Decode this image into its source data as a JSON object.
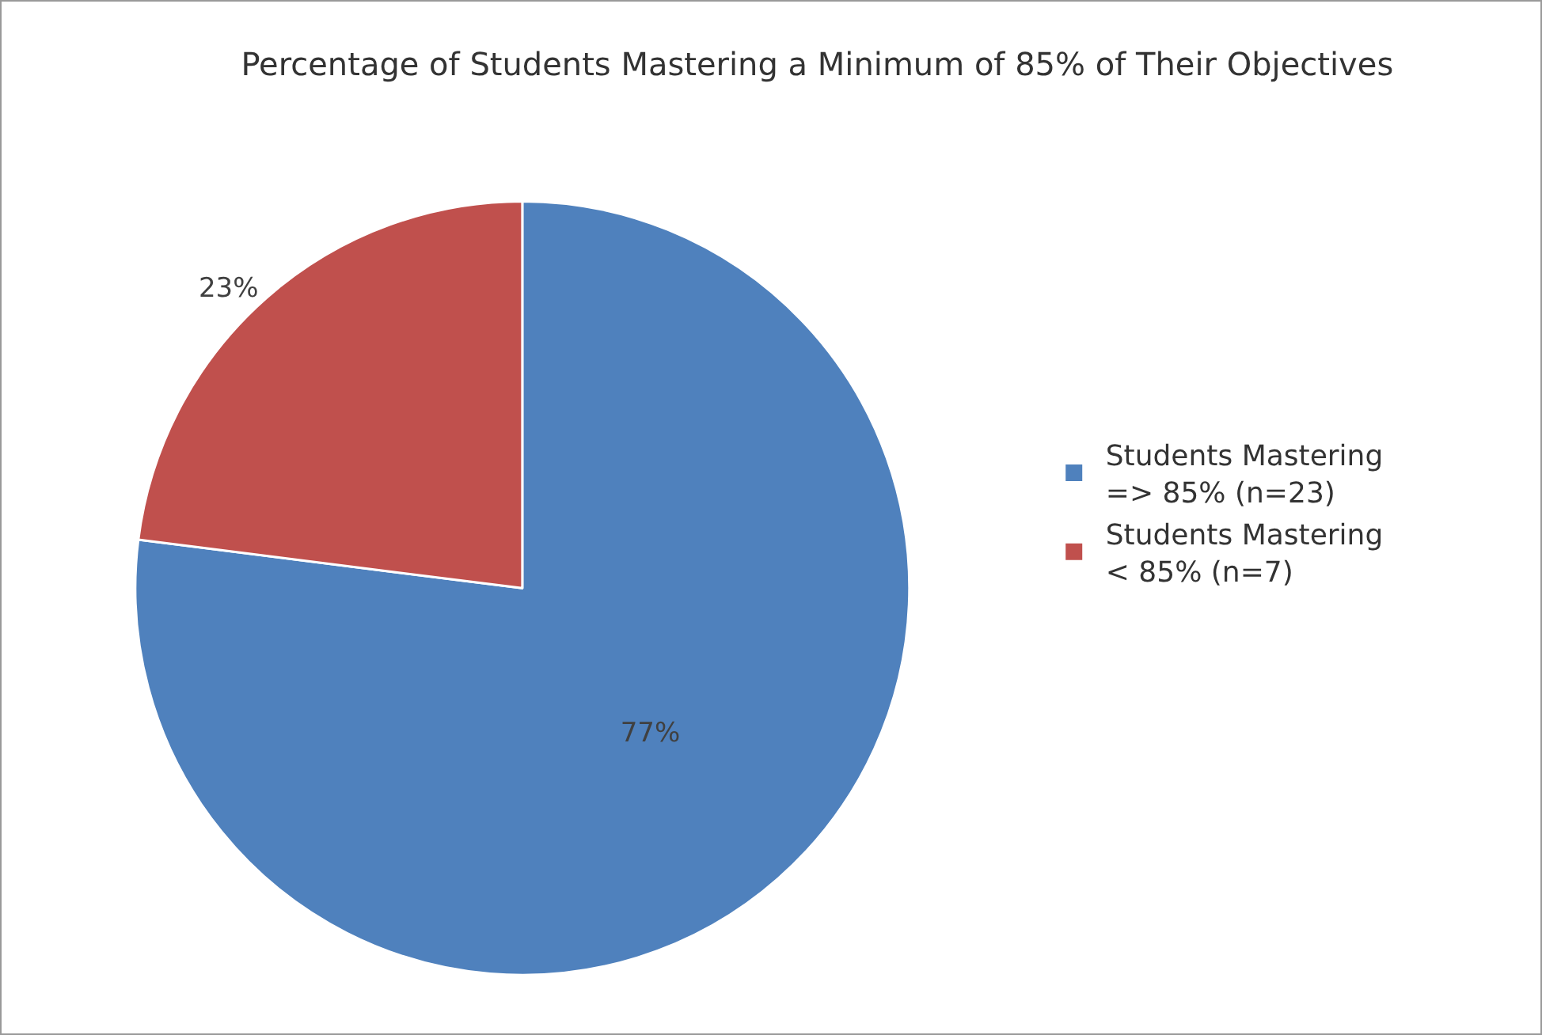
{
  "chart_data": {
    "type": "pie",
    "title": "Percentage of Students Mastering a Minimum of 85% of Their Objectives",
    "categories": [
      "Students Mastering => 85% (n=23)",
      "Students Mastering < 85% (n=7)"
    ],
    "values": [
      77,
      23
    ],
    "colors": [
      "#4f81bd",
      "#c0504d"
    ],
    "value_labels": [
      "77%",
      "23%"
    ],
    "legend": "right"
  }
}
